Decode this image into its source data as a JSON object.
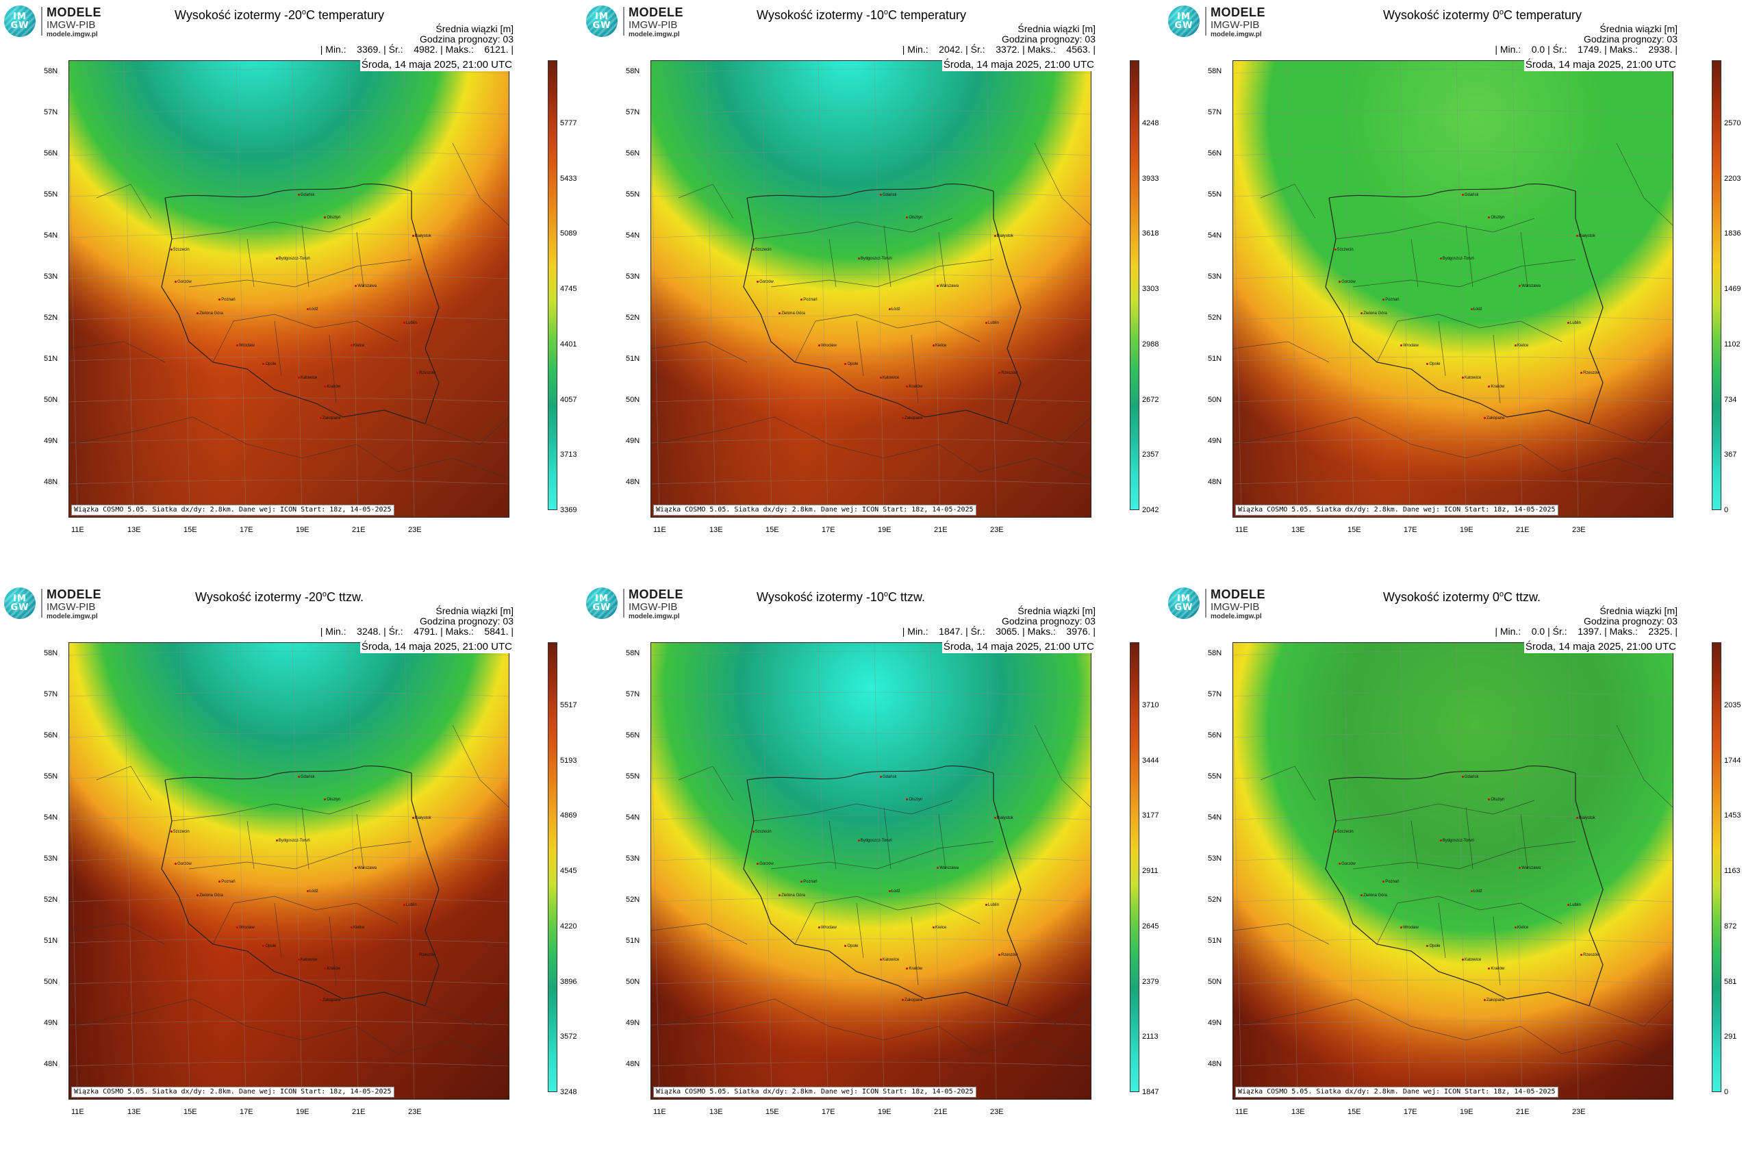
{
  "logo": {
    "glyph": "IM\nGW",
    "title": "MODELE",
    "subtitle": "IMGW-PIB",
    "site": "modele.imgw.pl"
  },
  "common": {
    "info_label": "Średnia wiązki [m]",
    "forecast_hour": "Godzina prognozy: 03",
    "date": "Środa, 14 maja 2025, 21:00 UTC",
    "footer": "Wiązka COSMO 5.05. Siatka dx/dy: 2.8km. Dane wej: ICON Start: 18z, 14-05-2025",
    "lat_labels": [
      "58N",
      "57N",
      "56N",
      "55N",
      "54N",
      "53N",
      "52N",
      "51N",
      "50N",
      "49N",
      "48N"
    ],
    "lon_labels": [
      "11E",
      "13E",
      "15E",
      "17E",
      "19E",
      "21E",
      "23E"
    ],
    "cities": [
      "Gdańsk",
      "Olsztyn",
      "Szczecin",
      "Białystok",
      "Bydgoszcz-Toruń",
      "Gorzów",
      "Poznań",
      "Warszawa",
      "Zielona Góra",
      "Łódź",
      "Lublin",
      "Wrocław",
      "Kielce",
      "Opole",
      "Rzeszów",
      "Katowice",
      "Kraków",
      "Zakopane"
    ]
  },
  "panels": [
    {
      "title_pre": "Wysokość izotermy -20",
      "title_sup": "o",
      "title_post": "C temperatury",
      "stats": "| Min.:    3369. | Śr.:    4982. | Maks.:    6121. |",
      "ticks": [
        "5777",
        "5433",
        "5089",
        "4745",
        "4401",
        "4057",
        "3713",
        "3369"
      ],
      "colors": {
        "top": "#2ef0d8",
        "mid": "#1aa57a",
        "ring": "#f0e020",
        "low": "#d84a10",
        "far": "#6e1e0c"
      },
      "cold_cx": 0.42,
      "cold_cy": -0.05,
      "cold_r": 0.5
    },
    {
      "title_pre": "Wysokość izotermy -10",
      "title_sup": "o",
      "title_post": "C temperatury",
      "stats": "| Min.:    2042. | Śr.:    3372. | Maks.:    4563. |",
      "ticks": [
        "4248",
        "3933",
        "3618",
        "3303",
        "2988",
        "2672",
        "2357",
        "2042"
      ],
      "colors": {
        "top": "#2ef0d8",
        "mid": "#1aa57a",
        "ring": "#f0e020",
        "low": "#d84a10",
        "far": "#6e1e0c"
      },
      "cold_cx": 0.45,
      "cold_cy": -0.02,
      "cold_r": 0.55
    },
    {
      "title_pre": "Wysokość izotermy 0",
      "title_sup": "o",
      "title_post": "C temperatury",
      "stats": "| Min.:    0.0 | Śr.:    1749. | Maks.:    2938. |",
      "ticks": [
        "2570",
        "2203",
        "1836",
        "1469",
        "1102",
        "734",
        "367",
        "0"
      ],
      "colors": {
        "top": "#5ed04a",
        "mid": "#3cc040",
        "ring": "#f0e020",
        "low": "#d84a10",
        "far": "#6e1e0c"
      },
      "cold_cx": 0.55,
      "cold_cy": 0.12,
      "cold_r": 0.55
    },
    {
      "title_pre": "Wysokość izotermy -20",
      "title_sup": "o",
      "title_post": "C ttzw.",
      "stats": "| Min.:    3248. | Śr.:    4791. | Maks.:    5841. |",
      "ticks": [
        "5517",
        "5193",
        "4869",
        "4545",
        "4220",
        "3896",
        "3572",
        "3248"
      ],
      "colors": {
        "top": "#2ef0d8",
        "mid": "#1aa57a",
        "ring": "#f0e020",
        "low": "#c83a0c",
        "far": "#5e160a"
      },
      "cold_cx": 0.5,
      "cold_cy": -0.05,
      "cold_r": 0.5
    },
    {
      "title_pre": "Wysokość izotermy -10",
      "title_sup": "o",
      "title_post": "C ttzw.",
      "stats": "| Min.:    1847. | Śr.:    3065. | Maks.:    3976. |",
      "ticks": [
        "3710",
        "3444",
        "3177",
        "2911",
        "2645",
        "2379",
        "2113",
        "1847"
      ],
      "colors": {
        "top": "#2ef0d8",
        "mid": "#1aa57a",
        "ring": "#f0e020",
        "low": "#c83a0c",
        "far": "#5e160a"
      },
      "cold_cx": 0.5,
      "cold_cy": 0.1,
      "cold_r": 0.55
    },
    {
      "title_pre": "Wysokość izotermy 0",
      "title_sup": "o",
      "title_post": "C ttzw.",
      "stats": "| Min.:    0.0 | Śr.:    1397. | Maks.:    2325. |",
      "ticks": [
        "2035",
        "1744",
        "1453",
        "1163",
        "872",
        "581",
        "291",
        "0"
      ],
      "colors": {
        "top": "#4ab83a",
        "mid": "#3aa83a",
        "ring": "#f0e020",
        "low": "#c83a0c",
        "far": "#5e160a"
      },
      "cold_cx": 0.55,
      "cold_cy": 0.18,
      "cold_r": 0.55
    }
  ]
}
